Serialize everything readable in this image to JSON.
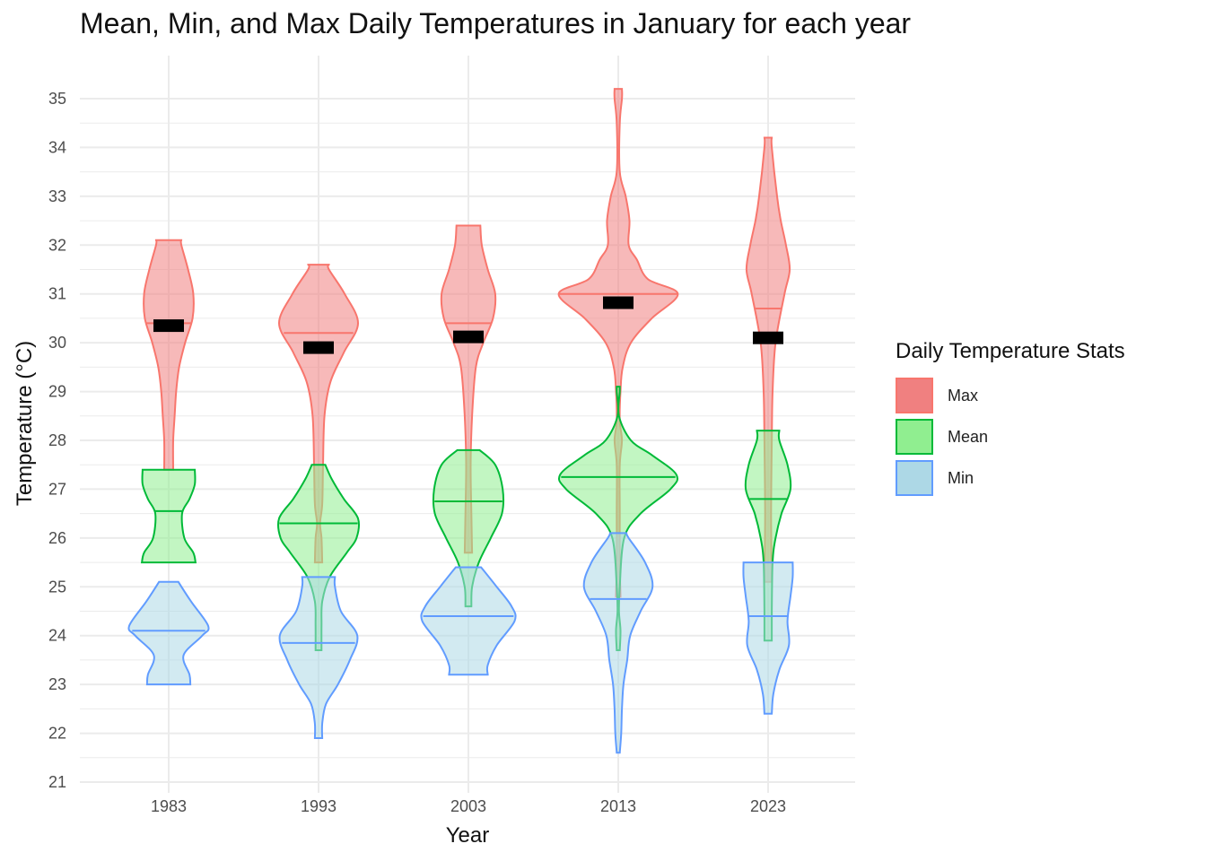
{
  "chart_data": {
    "type": "violin",
    "title": "Mean, Min, and Max Daily Temperatures in January for each year",
    "xlabel": "Year",
    "ylabel": "Temperature (°C)",
    "ylim": [
      21,
      35.9
    ],
    "y_ticks": [
      "21",
      "22",
      "23",
      "24",
      "25",
      "26",
      "27",
      "28",
      "29",
      "30",
      "31",
      "32",
      "33",
      "34",
      "35"
    ],
    "categories": [
      "1983",
      "1993",
      "2003",
      "2013",
      "2023"
    ],
    "grid": true,
    "legend": {
      "title": "Daily Temperature Stats",
      "placement": "right",
      "entries": [
        {
          "label": "Max",
          "fill": "#f08080",
          "stroke": "#f8766d"
        },
        {
          "label": "Mean",
          "fill": "#90ee90",
          "stroke": "#00ba38"
        },
        {
          "label": "Min",
          "fill": "#add8e6",
          "stroke": "#619cff"
        }
      ]
    },
    "series": [
      {
        "name": "Max",
        "fill": "#f08080",
        "stroke": "#f8766d",
        "violins": [
          {
            "year": "1983",
            "min": 27.4,
            "max": 32.1,
            "median": 30.4,
            "profile": [
              [
                27.4,
                0.06
              ],
              [
                28.0,
                0.06
              ],
              [
                28.5,
                0.08
              ],
              [
                29.0,
                0.1
              ],
              [
                29.5,
                0.14
              ],
              [
                30.0,
                0.22
              ],
              [
                30.5,
                0.32
              ],
              [
                31.0,
                0.33
              ],
              [
                31.5,
                0.26
              ],
              [
                32.0,
                0.17
              ],
              [
                32.1,
                0.17
              ]
            ]
          },
          {
            "year": "1993",
            "min": 25.5,
            "max": 31.6,
            "median": 30.2,
            "profile": [
              [
                25.5,
                0.05
              ],
              [
                26.0,
                0.04
              ],
              [
                26.3,
                0.02
              ],
              [
                26.7,
                0.05
              ],
              [
                27.5,
                0.06
              ],
              [
                28.5,
                0.08
              ],
              [
                29.2,
                0.16
              ],
              [
                29.8,
                0.34
              ],
              [
                30.4,
                0.53
              ],
              [
                31.0,
                0.35
              ],
              [
                31.5,
                0.14
              ],
              [
                31.6,
                0.14
              ]
            ]
          },
          {
            "year": "2003",
            "min": 25.7,
            "max": 32.4,
            "median": 30.4,
            "profile": [
              [
                25.7,
                0.05
              ],
              [
                26.5,
                0.04
              ],
              [
                27.5,
                0.03
              ],
              [
                28.5,
                0.05
              ],
              [
                29.5,
                0.1
              ],
              [
                30.0,
                0.2
              ],
              [
                30.5,
                0.33
              ],
              [
                31.0,
                0.36
              ],
              [
                31.5,
                0.26
              ],
              [
                32.0,
                0.18
              ],
              [
                32.4,
                0.16
              ]
            ]
          },
          {
            "year": "2013",
            "min": 24.8,
            "max": 35.2,
            "median": 31.0,
            "profile": [
              [
                24.8,
                0.03
              ],
              [
                25.5,
                0.02
              ],
              [
                26.5,
                0.02
              ],
              [
                27.5,
                0.02
              ],
              [
                28.0,
                0.05
              ],
              [
                28.4,
                0.02
              ],
              [
                29.0,
                0.03
              ],
              [
                29.5,
                0.06
              ],
              [
                30.0,
                0.17
              ],
              [
                30.5,
                0.45
              ],
              [
                31.0,
                0.8
              ],
              [
                31.3,
                0.4
              ],
              [
                31.7,
                0.25
              ],
              [
                32.0,
                0.14
              ],
              [
                32.5,
                0.15
              ],
              [
                33.0,
                0.1
              ],
              [
                33.5,
                0.02
              ],
              [
                34.5,
                0.02
              ],
              [
                35.0,
                0.05
              ],
              [
                35.2,
                0.05
              ]
            ]
          },
          {
            "year": "2023",
            "min": 25.1,
            "max": 34.2,
            "median": 30.7,
            "profile": [
              [
                25.1,
                0.05
              ],
              [
                26.5,
                0.04
              ],
              [
                28.0,
                0.05
              ],
              [
                29.0,
                0.06
              ],
              [
                30.0,
                0.1
              ],
              [
                31.0,
                0.22
              ],
              [
                31.5,
                0.29
              ],
              [
                32.0,
                0.24
              ],
              [
                32.5,
                0.17
              ],
              [
                33.0,
                0.12
              ],
              [
                34.0,
                0.05
              ],
              [
                34.2,
                0.05
              ]
            ]
          }
        ]
      },
      {
        "name": "Mean",
        "fill": "#90ee90",
        "stroke": "#00ba38",
        "violins": [
          {
            "year": "1983",
            "min": 25.5,
            "max": 27.4,
            "median": 26.55,
            "profile": [
              [
                25.5,
                0.36
              ],
              [
                25.7,
                0.33
              ],
              [
                26.0,
                0.21
              ],
              [
                26.5,
                0.18
              ],
              [
                26.8,
                0.28
              ],
              [
                27.1,
                0.35
              ],
              [
                27.4,
                0.35
              ]
            ]
          },
          {
            "year": "1993",
            "min": 23.7,
            "max": 27.5,
            "median": 26.3,
            "profile": [
              [
                23.7,
                0.04
              ],
              [
                24.2,
                0.04
              ],
              [
                24.7,
                0.05
              ],
              [
                25.2,
                0.15
              ],
              [
                25.7,
                0.38
              ],
              [
                26.0,
                0.51
              ],
              [
                26.4,
                0.53
              ],
              [
                26.8,
                0.34
              ],
              [
                27.2,
                0.18
              ],
              [
                27.5,
                0.09
              ]
            ]
          },
          {
            "year": "2003",
            "min": 24.6,
            "max": 27.8,
            "median": 26.75,
            "profile": [
              [
                24.6,
                0.04
              ],
              [
                25.0,
                0.05
              ],
              [
                25.5,
                0.14
              ],
              [
                26.0,
                0.3
              ],
              [
                26.5,
                0.45
              ],
              [
                27.0,
                0.46
              ],
              [
                27.5,
                0.36
              ],
              [
                27.8,
                0.15
              ]
            ]
          },
          {
            "year": "2013",
            "min": 23.7,
            "max": 29.1,
            "median": 27.25,
            "profile": [
              [
                23.7,
                0.02
              ],
              [
                24.1,
                0.03
              ],
              [
                24.5,
                0.01
              ],
              [
                25.0,
                0.02
              ],
              [
                26.0,
                0.08
              ],
              [
                26.5,
                0.3
              ],
              [
                27.0,
                0.7
              ],
              [
                27.3,
                0.78
              ],
              [
                27.7,
                0.45
              ],
              [
                28.0,
                0.17
              ],
              [
                28.5,
                0.01
              ],
              [
                29.0,
                0.02
              ],
              [
                29.1,
                0.02
              ]
            ]
          },
          {
            "year": "2023",
            "min": 23.9,
            "max": 28.2,
            "median": 26.8,
            "profile": [
              [
                23.9,
                0.05
              ],
              [
                24.5,
                0.05
              ],
              [
                25.5,
                0.06
              ],
              [
                26.0,
                0.1
              ],
              [
                26.5,
                0.18
              ],
              [
                27.0,
                0.3
              ],
              [
                27.5,
                0.26
              ],
              [
                28.0,
                0.15
              ],
              [
                28.2,
                0.15
              ]
            ]
          }
        ]
      },
      {
        "name": "Min",
        "fill": "#add8e6",
        "stroke": "#619cff",
        "violins": [
          {
            "year": "1983",
            "min": 23.0,
            "max": 25.1,
            "median": 24.1,
            "profile": [
              [
                23.0,
                0.29
              ],
              [
                23.2,
                0.28
              ],
              [
                23.6,
                0.2
              ],
              [
                24.0,
                0.45
              ],
              [
                24.2,
                0.53
              ],
              [
                24.7,
                0.3
              ],
              [
                25.1,
                0.13
              ]
            ]
          },
          {
            "year": "1993",
            "min": 21.9,
            "max": 25.2,
            "median": 23.85,
            "profile": [
              [
                21.9,
                0.05
              ],
              [
                22.2,
                0.05
              ],
              [
                22.6,
                0.1
              ],
              [
                23.0,
                0.26
              ],
              [
                23.5,
                0.42
              ],
              [
                24.0,
                0.52
              ],
              [
                24.5,
                0.3
              ],
              [
                25.0,
                0.22
              ],
              [
                25.2,
                0.22
              ]
            ]
          },
          {
            "year": "2003",
            "min": 23.2,
            "max": 25.4,
            "median": 24.4,
            "profile": [
              [
                23.2,
                0.26
              ],
              [
                23.4,
                0.26
              ],
              [
                23.8,
                0.38
              ],
              [
                24.3,
                0.62
              ],
              [
                24.6,
                0.58
              ],
              [
                25.0,
                0.38
              ],
              [
                25.4,
                0.17
              ]
            ]
          },
          {
            "year": "2013",
            "min": 21.6,
            "max": 26.1,
            "median": 24.75,
            "profile": [
              [
                21.6,
                0.02
              ],
              [
                22.0,
                0.04
              ],
              [
                22.5,
                0.05
              ],
              [
                23.0,
                0.07
              ],
              [
                23.5,
                0.12
              ],
              [
                24.0,
                0.16
              ],
              [
                24.5,
                0.3
              ],
              [
                25.0,
                0.46
              ],
              [
                25.5,
                0.36
              ],
              [
                26.0,
                0.14
              ],
              [
                26.1,
                0.11
              ]
            ]
          },
          {
            "year": "2023",
            "min": 22.4,
            "max": 25.5,
            "median": 24.4,
            "profile": [
              [
                22.4,
                0.05
              ],
              [
                22.8,
                0.07
              ],
              [
                23.3,
                0.15
              ],
              [
                23.8,
                0.28
              ],
              [
                24.3,
                0.26
              ],
              [
                24.8,
                0.3
              ],
              [
                25.2,
                0.33
              ],
              [
                25.5,
                0.33
              ]
            ]
          }
        ]
      }
    ],
    "mean_markers": [
      {
        "year": "1983",
        "value": 30.35
      },
      {
        "year": "1993",
        "value": 29.9
      },
      {
        "year": "2003",
        "value": 30.12
      },
      {
        "year": "2013",
        "value": 30.82
      },
      {
        "year": "2023",
        "value": 30.1
      }
    ]
  }
}
